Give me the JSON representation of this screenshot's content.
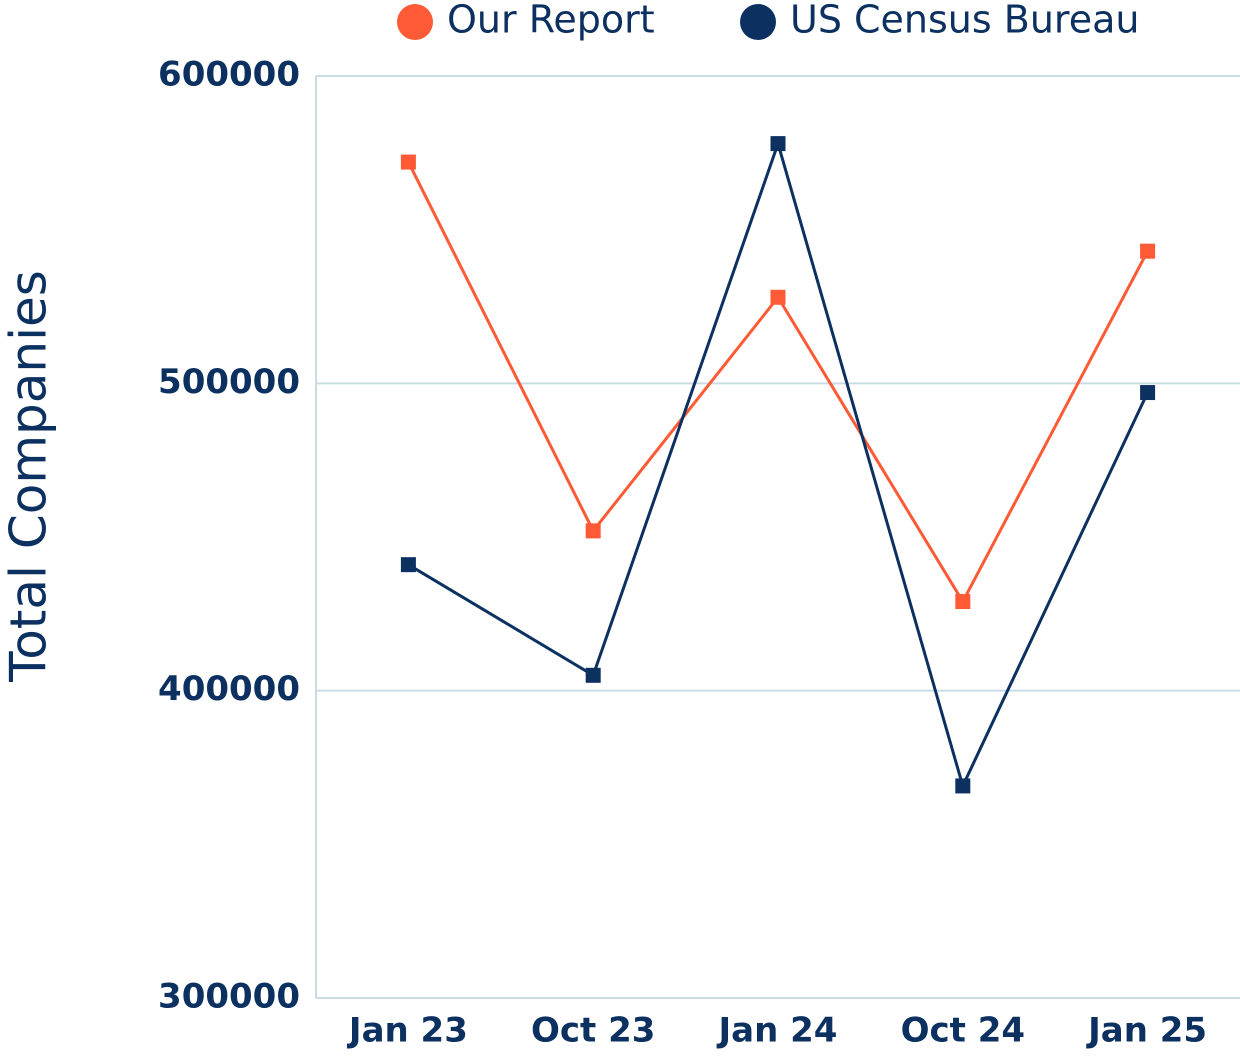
{
  "chart_data": {
    "type": "line",
    "y_label": "Total Companies",
    "categories": [
      "Jan 23",
      "Oct 23",
      "Jan 24",
      "Oct 24",
      "Jan 25"
    ],
    "series": [
      {
        "name": "Our Report",
        "color": "#ff5a36",
        "values": [
          572000,
          452000,
          528000,
          429000,
          543000
        ]
      },
      {
        "name": "US Census Bureau",
        "color": "#0c3161",
        "values": [
          441000,
          405000,
          578000,
          369000,
          497000
        ]
      }
    ],
    "ylim": [
      300000,
      600000
    ],
    "yticks": [
      300000,
      400000,
      500000,
      600000
    ],
    "grid": true
  }
}
